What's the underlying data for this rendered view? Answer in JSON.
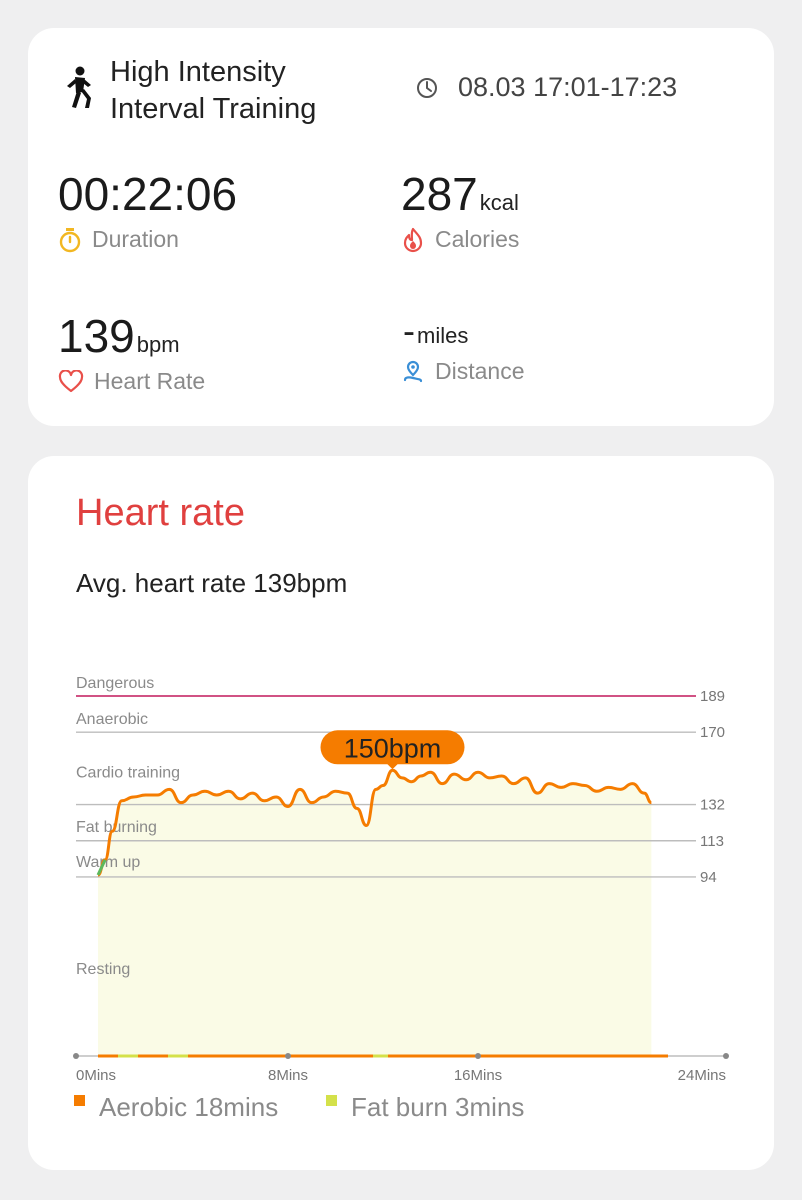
{
  "workout": {
    "title": "High Intensity Interval Training",
    "time_range": "08.03 17:01-17:23",
    "icon": "running-figure-icon"
  },
  "metrics": {
    "duration": {
      "value": "00:22:06",
      "unit": "",
      "label": "Duration",
      "icon": "stopwatch-icon",
      "color": "#f2b722"
    },
    "calories": {
      "value": "287",
      "unit": "kcal",
      "label": "Calories",
      "icon": "flame-icon",
      "color": "#e9504a"
    },
    "heart_rate": {
      "value": "139",
      "unit": "bpm",
      "label": "Heart Rate",
      "icon": "heart-icon",
      "color": "#e9504a"
    },
    "distance": {
      "value": "-",
      "unit": "miles",
      "label": "Distance",
      "icon": "location-pin-icon",
      "color": "#3a8fd6"
    }
  },
  "heart_rate_section": {
    "title": "Heart rate",
    "avg_text": "Avg. heart rate 139bpm",
    "peak_label": "150bpm"
  },
  "chart_data": {
    "type": "line",
    "x_unit": "Mins",
    "xlim": [
      0,
      24
    ],
    "ylim": [
      0,
      189
    ],
    "x_ticks": [
      "0Mins",
      "8Mins",
      "16Mins",
      "24Mins"
    ],
    "zones": [
      {
        "name": "Dangerous",
        "threshold": 189,
        "color": "#c2185b"
      },
      {
        "name": "Anaerobic",
        "threshold": 170,
        "color": "#bdbdbd"
      },
      {
        "name": "Cardio training",
        "threshold": 132,
        "color": "#bdbdbd"
      },
      {
        "name": "Fat burning",
        "threshold": 113,
        "color": "#bdbdbd"
      },
      {
        "name": "Warm up",
        "threshold": 94,
        "color": "#bdbdbd"
      },
      {
        "name": "Resting",
        "threshold": null,
        "color": "#bdbdbd"
      }
    ],
    "series": [
      {
        "values_x": [
          0,
          0.3,
          0.6,
          1,
          1.5,
          2,
          2.5,
          3,
          3.5,
          4,
          4.5,
          5,
          5.5,
          6,
          6.5,
          7,
          7.5,
          8,
          8.5,
          9,
          9.5,
          10,
          10.5,
          10.9,
          11.3,
          11.7,
          12,
          12.4,
          12.8,
          13.2,
          13.6,
          14,
          14.5,
          15,
          15.5,
          16,
          16.5,
          17,
          17.5,
          18,
          18.5,
          19,
          19.5,
          20,
          20.5,
          21,
          21.5,
          22,
          22.5,
          23,
          23.3
        ],
        "values_y": [
          95,
          103,
          118,
          134,
          136,
          137,
          137,
          140,
          133,
          137,
          139,
          137,
          139,
          135,
          138,
          134,
          136,
          131,
          140,
          133,
          136,
          139,
          138,
          130,
          121,
          140,
          142,
          150,
          146,
          144,
          147,
          149,
          143,
          148,
          145,
          149,
          146,
          147,
          143,
          146,
          138,
          143,
          141,
          143,
          142,
          139,
          141,
          140,
          143,
          138,
          133
        ]
      }
    ]
  },
  "legend": [
    {
      "label": "Aerobic 18mins",
      "color": "#f57c00"
    },
    {
      "label": "Fat burn 3mins",
      "color": "#d4e14a"
    }
  ],
  "next_section_peek": "Aerobic 18mins     Fat burn 3mins"
}
